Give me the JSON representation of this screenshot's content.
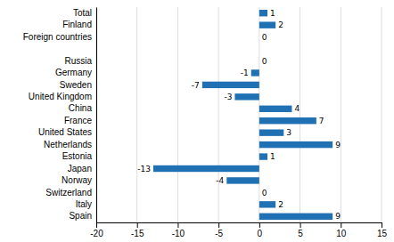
{
  "chart_data": {
    "type": "bar",
    "orientation": "horizontal",
    "categories": [
      "Total",
      "Finland",
      "Foreign countries",
      null,
      "Russia",
      "Germany",
      "Sweden",
      "United Kingdom",
      "China",
      "France",
      "United States",
      "Netherlands",
      "Estonia",
      "Japan",
      "Norway",
      "Switzerland",
      "Italy",
      "Spain"
    ],
    "values": [
      1,
      2,
      0,
      null,
      0,
      -1,
      -7,
      -3,
      4,
      7,
      3,
      9,
      1,
      -13,
      -4,
      0,
      2,
      9
    ],
    "color": "#2070b4",
    "xlim": [
      -20,
      15
    ],
    "xticks": [
      -20,
      -15,
      -10,
      -5,
      0,
      5,
      10,
      15
    ],
    "grid": true,
    "data_labels": true
  }
}
